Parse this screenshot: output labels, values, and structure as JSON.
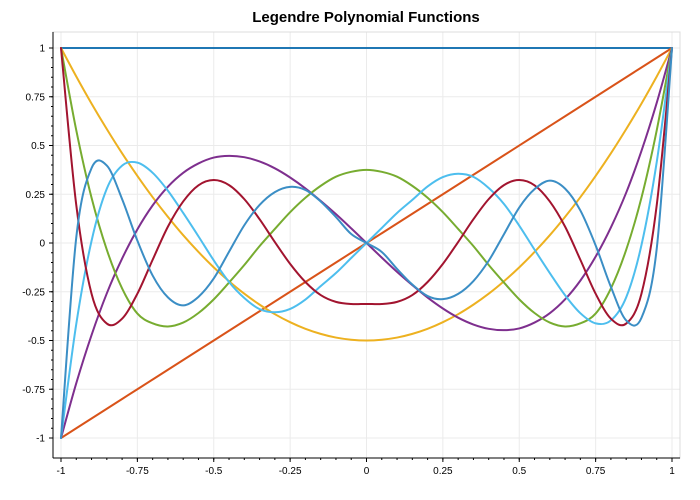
{
  "chart_data": {
    "type": "line",
    "title": "Legendre Polynomial Functions",
    "xlabel": "",
    "ylabel": "",
    "xlim": [
      -1,
      1
    ],
    "ylim": [
      -1,
      1
    ],
    "grid": true,
    "x_ticks": [
      -1,
      -0.75,
      -0.5,
      -0.25,
      0,
      0.25,
      0.5,
      0.75,
      1
    ],
    "x_tick_labels": [
      "-1",
      "-0.75",
      "-0.5",
      "-0.25",
      "0",
      "0.25",
      "0.5",
      "0.75",
      "1"
    ],
    "y_ticks": [
      -1,
      -0.75,
      -0.5,
      -0.25,
      0,
      0.25,
      0.5,
      0.75,
      1
    ],
    "y_tick_labels": [
      "-1",
      "-0.75",
      "-0.5",
      "-0.25",
      "0",
      "0.25",
      "0.5",
      "0.75",
      "1"
    ],
    "x": [
      -1,
      -0.95,
      -0.9,
      -0.85,
      -0.8,
      -0.75,
      -0.7,
      -0.65,
      -0.6,
      -0.55,
      -0.5,
      -0.45,
      -0.4,
      -0.35,
      -0.3,
      -0.25,
      -0.2,
      -0.15,
      -0.1,
      -0.05,
      0,
      0.05,
      0.1,
      0.15,
      0.2,
      0.25,
      0.3,
      0.35,
      0.4,
      0.45,
      0.5,
      0.55,
      0.6,
      0.65,
      0.7,
      0.75,
      0.8,
      0.85,
      0.9,
      0.95,
      1
    ],
    "series": [
      {
        "color": "#1f77b4",
        "values": [
          1,
          1,
          1,
          1,
          1,
          1,
          1,
          1,
          1,
          1,
          1,
          1,
          1,
          1,
          1,
          1,
          1,
          1,
          1,
          1,
          1,
          1,
          1,
          1,
          1,
          1,
          1,
          1,
          1,
          1,
          1,
          1,
          1,
          1,
          1,
          1,
          1,
          1,
          1,
          1,
          1
        ]
      },
      {
        "color": "#d95319",
        "values": [
          -1,
          -0.95,
          -0.9,
          -0.85,
          -0.8,
          -0.75,
          -0.7,
          -0.65,
          -0.6,
          -0.55,
          -0.5,
          -0.45,
          -0.4,
          -0.35,
          -0.3,
          -0.25,
          -0.2,
          -0.15,
          -0.1,
          -0.05,
          0,
          0.05,
          0.1,
          0.15,
          0.2,
          0.25,
          0.3,
          0.35,
          0.4,
          0.45,
          0.5,
          0.55,
          0.6,
          0.65,
          0.7,
          0.75,
          0.8,
          0.85,
          0.9,
          0.95,
          1
        ]
      },
      {
        "color": "#edb120",
        "values": [
          1,
          0.854,
          0.715,
          0.584,
          0.46,
          0.344,
          0.235,
          0.134,
          0.04,
          -0.046,
          -0.125,
          -0.196,
          -0.26,
          -0.316,
          -0.365,
          -0.406,
          -0.44,
          -0.466,
          -0.485,
          -0.496,
          -0.5,
          -0.496,
          -0.485,
          -0.466,
          -0.44,
          -0.406,
          -0.365,
          -0.316,
          -0.26,
          -0.196,
          -0.125,
          -0.046,
          0.04,
          0.134,
          0.235,
          0.344,
          0.46,
          0.584,
          0.715,
          0.854,
          1
        ]
      },
      {
        "color": "#7e2f8e",
        "values": [
          -1,
          -0.719,
          -0.472,
          -0.258,
          -0.08,
          0.07,
          0.193,
          0.289,
          0.36,
          0.408,
          0.438,
          0.447,
          0.44,
          0.418,
          0.383,
          0.336,
          0.28,
          0.216,
          0.148,
          0.075,
          0,
          -0.075,
          -0.148,
          -0.216,
          -0.28,
          -0.336,
          -0.383,
          -0.418,
          -0.44,
          -0.447,
          -0.438,
          -0.408,
          -0.36,
          -0.289,
          -0.193,
          -0.07,
          0.08,
          0.258,
          0.472,
          0.719,
          1
        ]
      },
      {
        "color": "#77ac30",
        "values": [
          1,
          0.578,
          0.232,
          -0.035,
          -0.233,
          -0.362,
          -0.412,
          -0.428,
          -0.408,
          -0.359,
          -0.289,
          -0.203,
          -0.113,
          -0.016,
          0.072,
          0.158,
          0.232,
          0.293,
          0.34,
          0.365,
          0.375,
          0.365,
          0.34,
          0.293,
          0.232,
          0.158,
          0.072,
          -0.016,
          -0.113,
          -0.203,
          -0.289,
          -0.359,
          -0.408,
          -0.428,
          -0.412,
          -0.362,
          -0.233,
          -0.035,
          0.232,
          0.578,
          1
        ]
      },
      {
        "color": "#4dbeee",
        "values": [
          -1,
          -0.415,
          0.011,
          0.279,
          0.397,
          0.412,
          0.36,
          0.268,
          0.154,
          0.034,
          -0.089,
          -0.2,
          -0.282,
          -0.339,
          -0.355,
          -0.338,
          -0.29,
          -0.221,
          -0.154,
          -0.077,
          0,
          0.077,
          0.154,
          0.221,
          0.29,
          0.338,
          0.355,
          0.339,
          0.282,
          0.2,
          0.089,
          -0.034,
          -0.154,
          -0.268,
          -0.36,
          -0.412,
          -0.397,
          -0.279,
          -0.011,
          0.415,
          1
        ]
      },
      {
        "color": "#a2142f",
        "values": [
          1,
          0.194,
          -0.26,
          -0.413,
          -0.388,
          -0.26,
          -0.086,
          0.084,
          0.213,
          0.296,
          0.323,
          0.297,
          0.225,
          0.122,
          0.005,
          -0.107,
          -0.2,
          -0.267,
          -0.302,
          -0.313,
          -0.3125,
          -0.313,
          -0.302,
          -0.267,
          -0.2,
          -0.107,
          0.005,
          0.122,
          0.225,
          0.297,
          0.323,
          0.296,
          0.213,
          0.084,
          -0.086,
          -0.26,
          -0.388,
          -0.413,
          -0.26,
          0.194,
          1
        ]
      },
      {
        "color": "#3b8ec5",
        "values": [
          -1,
          0.029,
          0.384,
          0.397,
          0.225,
          0.012,
          -0.167,
          -0.279,
          -0.32,
          -0.276,
          -0.182,
          -0.045,
          0.091,
          0.195,
          0.261,
          0.288,
          0.272,
          0.213,
          0.133,
          0.046,
          0,
          -0.046,
          -0.133,
          -0.213,
          -0.272,
          -0.288,
          -0.261,
          -0.195,
          -0.091,
          0.045,
          0.182,
          0.276,
          0.32,
          0.279,
          0.167,
          -0.012,
          -0.225,
          -0.397,
          -0.384,
          -0.029,
          1
        ]
      }
    ]
  }
}
